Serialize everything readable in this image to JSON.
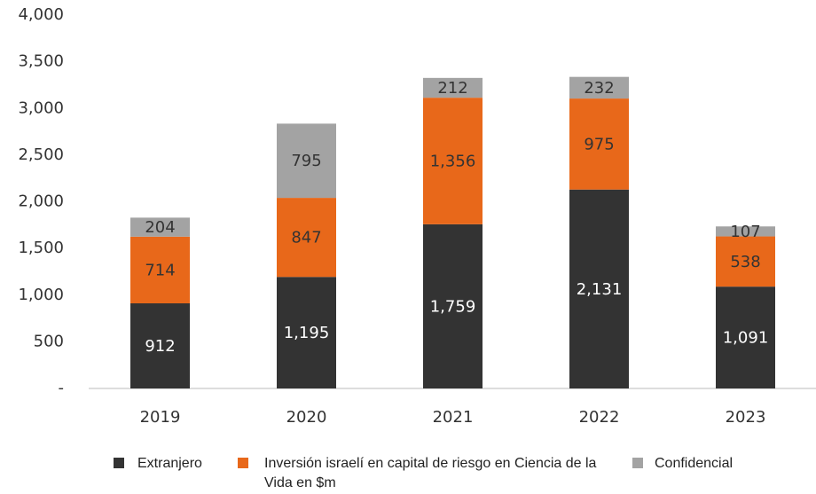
{
  "chart_data": {
    "type": "stacked_bar",
    "categories": [
      "2019",
      "2020",
      "2021",
      "2022",
      "2023"
    ],
    "series": [
      {
        "name": "Extranjero",
        "color": "#333333",
        "values": [
          912,
          1195,
          1759,
          2131,
          1091
        ],
        "value_labels": [
          "912",
          "1,195",
          "1,759",
          "2,131",
          "1,091"
        ]
      },
      {
        "name": "Inversión israelí en capital de riesgo en Ciencia de la Vida en $m",
        "color": "#e8681a",
        "values": [
          714,
          847,
          1356,
          975,
          538
        ],
        "value_labels": [
          "714",
          "847",
          "1,356",
          "975",
          "538"
        ]
      },
      {
        "name": "Confidencial",
        "color": "#a3a3a3",
        "values": [
          204,
          795,
          212,
          232,
          107
        ],
        "value_labels": [
          "204",
          "795",
          "212",
          "232",
          "107"
        ]
      }
    ],
    "ylim": [
      0,
      4000
    ],
    "yticks": [
      {
        "value": 0,
        "label": "-"
      },
      500,
      {
        "value": 1000,
        "label": "1,000"
      },
      {
        "value": 1500,
        "label": "1,500"
      },
      {
        "value": 2000,
        "label": "2,000"
      },
      {
        "value": 2500,
        "label": "2,500"
      },
      {
        "value": 3000,
        "label": "3,000"
      },
      {
        "value": 3500,
        "label": "3,500"
      },
      {
        "value": 4000,
        "label": "4,000"
      }
    ]
  }
}
